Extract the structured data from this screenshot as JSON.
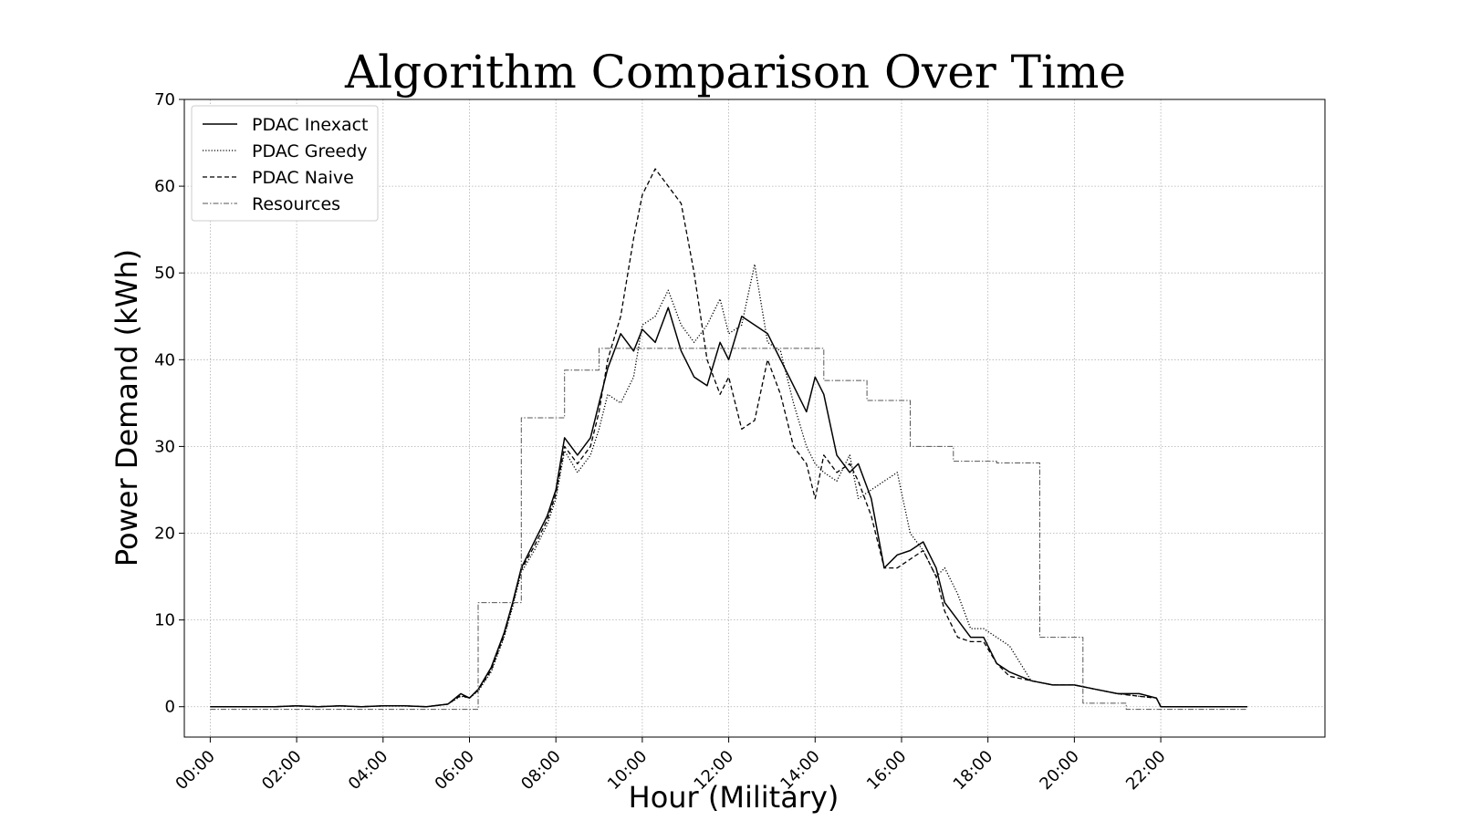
{
  "chart_data": {
    "type": "line",
    "title": "Algorithm Comparison Over Time",
    "xlabel": "Hour (Military)",
    "ylabel": "Power Demand (kWh)",
    "xlim": [
      -0.6,
      25.8
    ],
    "ylim": [
      -3.5,
      70
    ],
    "xticks": [
      0,
      2,
      4,
      6,
      8,
      10,
      12,
      14,
      16,
      18,
      20,
      22
    ],
    "xtick_labels": [
      "00:00",
      "02:00",
      "04:00",
      "06:00",
      "08:00",
      "10:00",
      "12:00",
      "14:00",
      "16:00",
      "18:00",
      "20:00",
      "22:00"
    ],
    "yticks": [
      0,
      10,
      20,
      30,
      40,
      50,
      60,
      70
    ],
    "grid": true,
    "legend_position": "top-left",
    "series": [
      {
        "name": "PDAC Inexact",
        "style": "solid",
        "color": "#000000",
        "x": [
          0,
          1.5,
          2.0,
          2.5,
          3.0,
          3.5,
          4.0,
          4.5,
          5.0,
          5.5,
          5.8,
          6.0,
          6.2,
          6.5,
          6.8,
          7.0,
          7.2,
          7.5,
          7.8,
          8.0,
          8.2,
          8.5,
          8.8,
          9.0,
          9.2,
          9.5,
          9.8,
          10.0,
          10.3,
          10.6,
          10.9,
          11.2,
          11.5,
          11.8,
          12.0,
          12.3,
          12.6,
          12.9,
          13.2,
          13.5,
          13.8,
          14.0,
          14.2,
          14.5,
          14.8,
          15.0,
          15.3,
          15.6,
          15.9,
          16.2,
          16.5,
          16.8,
          17.0,
          17.3,
          17.6,
          17.9,
          18.2,
          18.5,
          19.0,
          19.5,
          20.0,
          20.5,
          21.0,
          21.5,
          21.9,
          22.0,
          22.5,
          24.0
        ],
        "y": [
          0,
          0,
          0.1,
          0,
          0.1,
          0,
          0.1,
          0.1,
          0,
          0.3,
          1.5,
          1.0,
          2.0,
          4.5,
          8.5,
          12.0,
          16.0,
          19.0,
          22.0,
          25.0,
          31.0,
          29.0,
          31.0,
          35.0,
          39.0,
          43.0,
          41.0,
          43.5,
          42.0,
          46.0,
          41.0,
          38.0,
          37.0,
          42.0,
          40.0,
          45.0,
          44.0,
          43.0,
          40.0,
          37.0,
          34.0,
          38.0,
          36.0,
          29.0,
          27.0,
          28.0,
          24.0,
          16.0,
          17.5,
          18.0,
          19.0,
          16.0,
          12.0,
          10.0,
          8.0,
          8.0,
          5.0,
          4.0,
          3.0,
          2.5,
          2.5,
          2.0,
          1.5,
          1.5,
          1.0,
          0,
          0,
          0
        ]
      },
      {
        "name": "PDAC Greedy",
        "style": "dotted",
        "color": "#000000",
        "x": [
          0,
          1.5,
          2.0,
          2.5,
          3.0,
          3.5,
          4.0,
          4.5,
          5.0,
          5.5,
          5.8,
          6.0,
          6.2,
          6.5,
          6.8,
          7.0,
          7.2,
          7.5,
          7.8,
          8.0,
          8.2,
          8.5,
          8.8,
          9.0,
          9.2,
          9.5,
          9.8,
          10.0,
          10.3,
          10.6,
          10.9,
          11.2,
          11.5,
          11.8,
          12.0,
          12.3,
          12.6,
          12.9,
          13.2,
          13.5,
          13.8,
          14.0,
          14.2,
          14.5,
          14.8,
          15.0,
          15.3,
          15.6,
          15.9,
          16.2,
          16.5,
          16.8,
          17.0,
          17.3,
          17.6,
          17.9,
          18.2,
          18.5,
          19.0,
          19.5,
          20.0,
          20.5,
          21.0,
          21.5,
          21.9,
          22.0,
          22.5,
          24.0
        ],
        "y": [
          0,
          0,
          0.1,
          0,
          0.1,
          0,
          0.1,
          0.1,
          0,
          0.3,
          1.2,
          1.0,
          1.8,
          4.0,
          8.0,
          11.5,
          15.5,
          18.0,
          21.0,
          24.0,
          29.5,
          27.0,
          29.0,
          32.0,
          36.0,
          35.0,
          38.0,
          44.0,
          45.0,
          48.0,
          44.0,
          42.0,
          44.0,
          47.0,
          43.0,
          44.0,
          51.0,
          42.0,
          41.0,
          35.0,
          30.0,
          28.0,
          27.0,
          26.0,
          29.0,
          24.0,
          25.0,
          26.0,
          27.0,
          20.0,
          18.0,
          15.0,
          16.0,
          13.0,
          9.0,
          9.0,
          8.0,
          7.0,
          3.0,
          2.5,
          2.5,
          2.0,
          1.5,
          1.2,
          1.0,
          0,
          0,
          0
        ]
      },
      {
        "name": "PDAC Naive",
        "style": "dashed",
        "color": "#000000",
        "x": [
          0,
          1.5,
          2.0,
          2.5,
          3.0,
          3.5,
          4.0,
          4.5,
          5.0,
          5.5,
          5.8,
          6.0,
          6.2,
          6.5,
          6.8,
          7.0,
          7.2,
          7.5,
          7.8,
          8.0,
          8.2,
          8.5,
          8.8,
          9.0,
          9.2,
          9.5,
          9.8,
          10.0,
          10.3,
          10.6,
          10.9,
          11.2,
          11.5,
          11.8,
          12.0,
          12.3,
          12.6,
          12.9,
          13.2,
          13.5,
          13.8,
          14.0,
          14.2,
          14.5,
          14.8,
          15.0,
          15.3,
          15.6,
          15.9,
          16.2,
          16.5,
          16.8,
          17.0,
          17.3,
          17.6,
          17.9,
          18.2,
          18.5,
          19.0,
          19.5,
          20.0,
          20.5,
          21.0,
          21.5,
          21.9,
          22.0,
          22.5,
          24.0
        ],
        "y": [
          0,
          0,
          0.1,
          0,
          0.1,
          0,
          0.1,
          0.1,
          0,
          0.3,
          1.3,
          1.0,
          1.9,
          4.2,
          8.2,
          11.8,
          15.8,
          18.5,
          21.5,
          24.5,
          30.0,
          28.0,
          30.0,
          34.0,
          40.0,
          45.0,
          54.0,
          59.0,
          62.0,
          60.0,
          58.0,
          50.0,
          40.0,
          36.0,
          38.0,
          32.0,
          33.0,
          40.0,
          36.0,
          30.0,
          28.0,
          24.0,
          29.0,
          27.0,
          28.0,
          26.0,
          22.0,
          16.0,
          16.0,
          17.0,
          18.0,
          15.0,
          11.0,
          8.0,
          7.5,
          7.5,
          5.0,
          3.5,
          3.0,
          2.5,
          2.5,
          2.0,
          1.5,
          1.2,
          1.0,
          0,
          0,
          0
        ]
      },
      {
        "name": "Resources",
        "style": "dashdot",
        "color": "#555555",
        "step": true,
        "x": [
          0,
          1.2,
          2.2,
          4.0,
          5.2,
          6.2,
          7.2,
          8.2,
          9.0,
          10.0,
          11.0,
          12.0,
          13.0,
          14.2,
          15.2,
          16.2,
          17.2,
          18.2,
          19.2,
          20.2,
          21.2,
          22.2,
          23.2,
          24.0
        ],
        "y": [
          -0.3,
          -0.3,
          -0.3,
          -0.3,
          -0.3,
          12.0,
          33.3,
          38.8,
          41.3,
          41.3,
          41.3,
          41.3,
          41.3,
          37.6,
          35.3,
          30.0,
          28.3,
          28.1,
          8.0,
          0.4,
          -0.3,
          -0.3,
          -0.3,
          -0.3
        ]
      }
    ]
  }
}
